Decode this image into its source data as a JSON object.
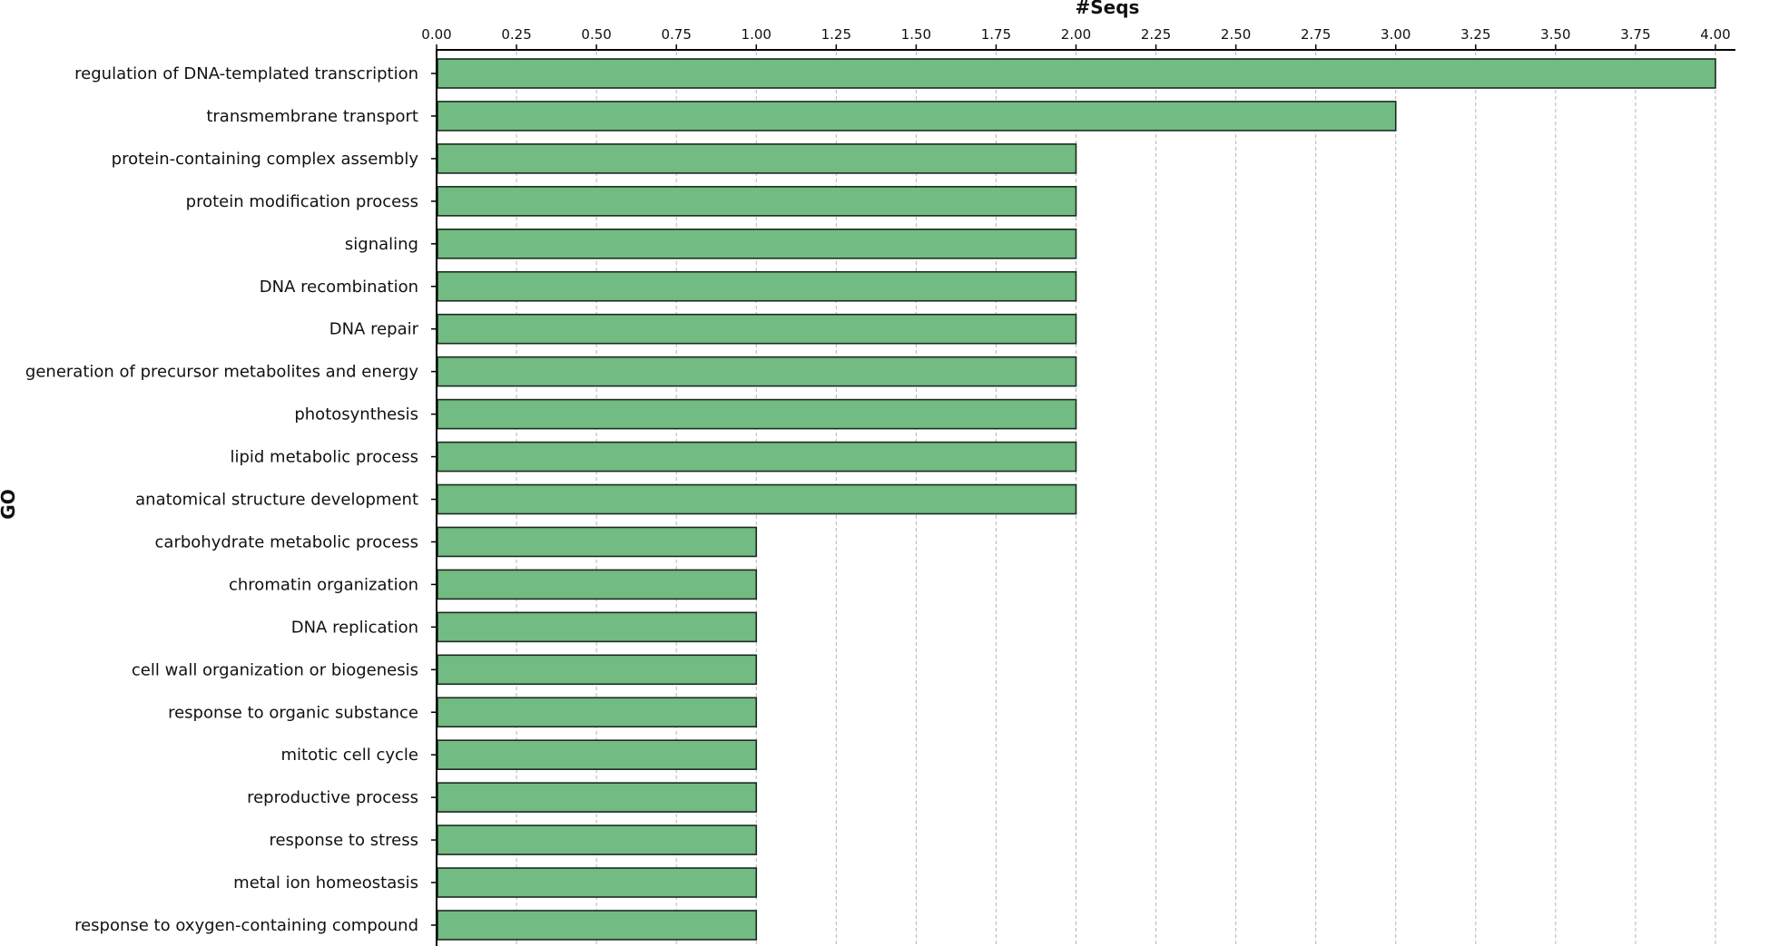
{
  "chart_data": {
    "type": "bar",
    "orientation": "horizontal",
    "xlabel": "#Seqs",
    "ylabel": "GO",
    "xlim": [
      0,
      4
    ],
    "x_ticks": [
      "0.00",
      "0.25",
      "0.50",
      "0.75",
      "1.00",
      "1.25",
      "1.50",
      "1.75",
      "2.00",
      "2.25",
      "2.50",
      "2.75",
      "3.00",
      "3.25",
      "3.50",
      "3.75",
      "4.00"
    ],
    "categories": [
      "regulation of DNA-templated transcription",
      "transmembrane transport",
      "protein-containing complex assembly",
      "protein modification process",
      "signaling",
      "DNA recombination",
      "DNA repair",
      "generation of precursor metabolites and energy",
      "photosynthesis",
      "lipid metabolic process",
      "anatomical structure development",
      "carbohydrate metabolic process",
      "chromatin organization",
      "DNA replication",
      "cell wall organization or biogenesis",
      "response to organic substance",
      "mitotic cell cycle",
      "reproductive process",
      "response to stress",
      "metal ion homeostasis",
      "response to oxygen-containing compound"
    ],
    "values": [
      4,
      3,
      2,
      2,
      2,
      2,
      2,
      2,
      2,
      2,
      2,
      1,
      1,
      1,
      1,
      1,
      1,
      1,
      1,
      1,
      1
    ],
    "grid": true,
    "grid_style": "dashed vertical",
    "axis_position": "top",
    "bar_color": "#72bb82",
    "bar_edge_color": "#1c2a1e"
  }
}
